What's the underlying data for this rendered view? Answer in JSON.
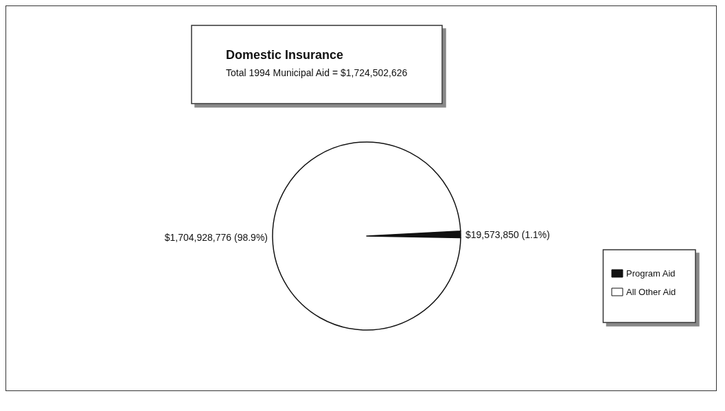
{
  "chart_data": {
    "type": "pie",
    "title": "Domestic Insurance",
    "subtitle": "Total 1994 Municipal Aid = $1,724,502,626",
    "categories": [
      "Program Aid",
      "All Other Aid"
    ],
    "values": [
      19573850,
      1704928776
    ],
    "colors": [
      "#111111",
      "#ffffff"
    ],
    "value_labels": [
      "$19,573,850 (1.1%)",
      "$1,704,928,776 (98.9%)"
    ],
    "legend": "right"
  }
}
